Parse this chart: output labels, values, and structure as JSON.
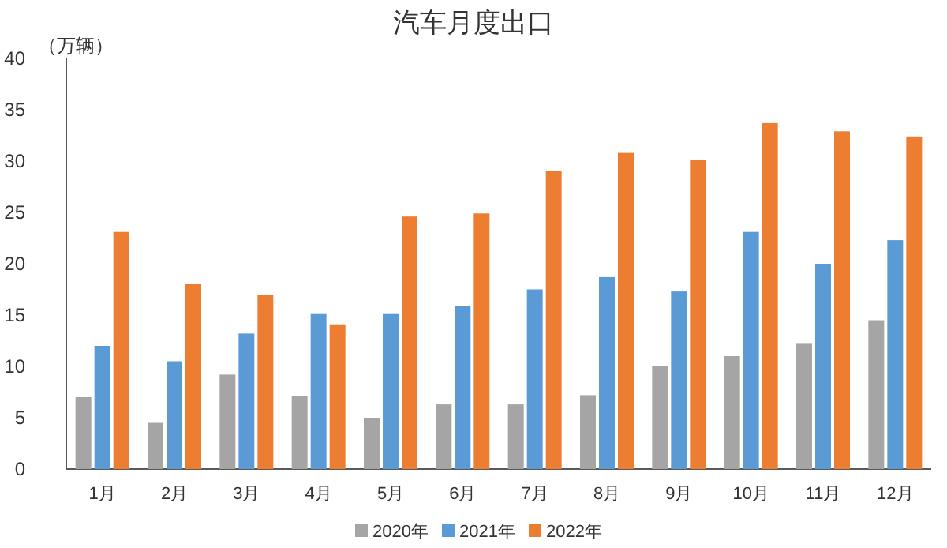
{
  "chart_data": {
    "type": "bar",
    "title": "汽车月度出口",
    "ylabel": "（万辆）",
    "categories": [
      "1月",
      "2月",
      "3月",
      "4月",
      "5月",
      "6月",
      "7月",
      "8月",
      "9月",
      "10月",
      "11月",
      "12月"
    ],
    "series": [
      {
        "name": "2020年",
        "color": "#a5a5a5",
        "values": [
          7.0,
          4.5,
          9.2,
          7.1,
          5.0,
          6.3,
          6.3,
          7.2,
          10.0,
          11.0,
          12.2,
          14.5
        ]
      },
      {
        "name": "2021年",
        "color": "#5b9bd5",
        "values": [
          12.0,
          10.5,
          13.2,
          15.1,
          15.1,
          15.9,
          17.5,
          18.7,
          17.3,
          23.1,
          20.0,
          22.3
        ]
      },
      {
        "name": "2022年",
        "color": "#ed7d31",
        "values": [
          23.1,
          18.0,
          17.0,
          14.1,
          24.6,
          24.9,
          29.0,
          30.8,
          30.1,
          33.7,
          32.9,
          32.4
        ]
      }
    ],
    "ylim": [
      0,
      40
    ],
    "yticks": [
      0,
      5,
      10,
      15,
      20,
      25,
      30,
      35,
      40
    ],
    "grid": false,
    "legend": "bottom"
  }
}
